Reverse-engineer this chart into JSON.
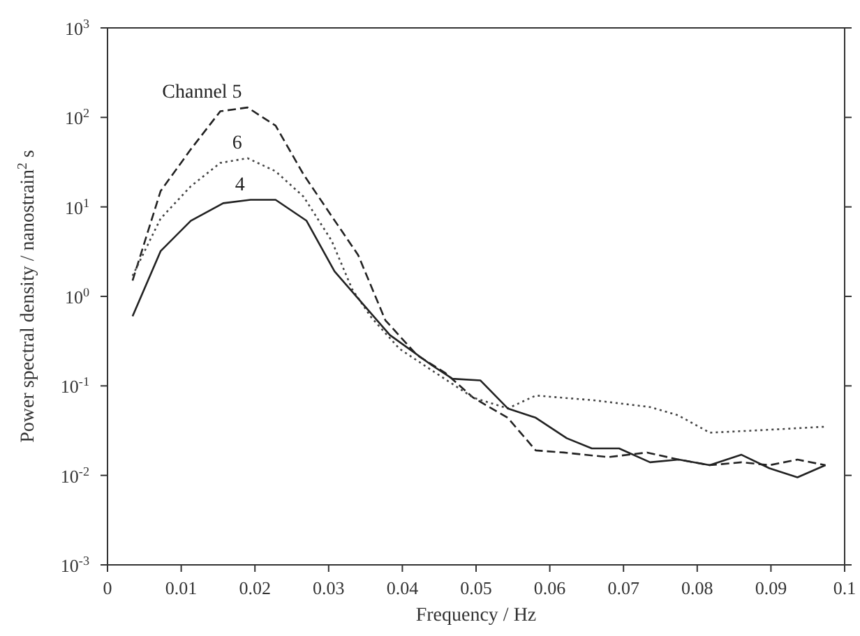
{
  "chart_data": {
    "type": "line",
    "xlabel": "Frequency / Hz",
    "ylabel": "Power spectral density / nanostrain$^{2}$ s",
    "log": "y",
    "marker": "none",
    "xlim": [
      0,
      0.1
    ],
    "xticks": [
      0,
      0.01,
      0.02,
      0.03,
      0.04,
      0.05,
      0.06,
      0.07,
      0.08,
      0.09,
      0.1
    ],
    "ylim": [
      0.001,
      1000
    ],
    "yticks": [
      {
        "value": 0.001,
        "label": "10$^{-3}$"
      },
      {
        "value": 0.01,
        "label": "10$^{-2}$"
      },
      {
        "value": 0.1,
        "label": "10$^{-1}$"
      },
      {
        "value": 1,
        "label": "10$^{0}$"
      },
      {
        "value": 10,
        "label": "10$^{1}$"
      },
      {
        "value": 100,
        "label": "10$^{2}$"
      },
      {
        "value": 1000,
        "label": "10$^{3}$"
      }
    ],
    "series": [
      {
        "name": "Channel 5",
        "color": "#222222",
        "line_style": "dashed",
        "x": [
          0.0034,
          0.0072,
          0.0113,
          0.0153,
          0.019,
          0.0228,
          0.0266,
          0.0304,
          0.034,
          0.0377,
          0.042,
          0.0458,
          0.0496,
          0.0543,
          0.0581,
          0.0619,
          0.0679,
          0.0732,
          0.0775,
          0.0817,
          0.086,
          0.0898,
          0.0936,
          0.0974
        ],
        "values": [
          1.5,
          15,
          44,
          117,
          129,
          81,
          23,
          7.9,
          2.9,
          0.54,
          0.22,
          0.14,
          0.074,
          0.044,
          0.019,
          0.018,
          0.016,
          0.018,
          0.015,
          0.013,
          0.014,
          0.013,
          0.015,
          0.013
        ]
      },
      {
        "name": "6",
        "color": "#444444",
        "line_style": "dotted",
        "x": [
          0.0034,
          0.0072,
          0.0113,
          0.0153,
          0.019,
          0.0228,
          0.0266,
          0.0304,
          0.0332,
          0.0358,
          0.0396,
          0.0445,
          0.0496,
          0.0543,
          0.0581,
          0.066,
          0.0736,
          0.0774,
          0.0817,
          0.0887,
          0.0974
        ],
        "values": [
          1.7,
          7.4,
          17,
          31,
          35,
          25,
          13,
          4.2,
          1.2,
          0.58,
          0.26,
          0.14,
          0.074,
          0.056,
          0.078,
          0.069,
          0.058,
          0.047,
          0.03,
          0.032,
          0.035
        ]
      },
      {
        "name": "4",
        "color": "#222222",
        "line_style": "solid",
        "x": [
          0.0034,
          0.0072,
          0.0113,
          0.0157,
          0.0194,
          0.0228,
          0.027,
          0.0308,
          0.0345,
          0.0383,
          0.044,
          0.0468,
          0.0506,
          0.0543,
          0.0581,
          0.0623,
          0.0657,
          0.0694,
          0.0736,
          0.0775,
          0.0817,
          0.086,
          0.0898,
          0.0936,
          0.0974
        ],
        "values": [
          0.6,
          3.2,
          7,
          11,
          12,
          12,
          7,
          1.9,
          0.85,
          0.37,
          0.17,
          0.12,
          0.115,
          0.056,
          0.044,
          0.026,
          0.02,
          0.02,
          0.014,
          0.015,
          0.013,
          0.017,
          0.012,
          0.0095,
          0.013
        ]
      }
    ]
  }
}
